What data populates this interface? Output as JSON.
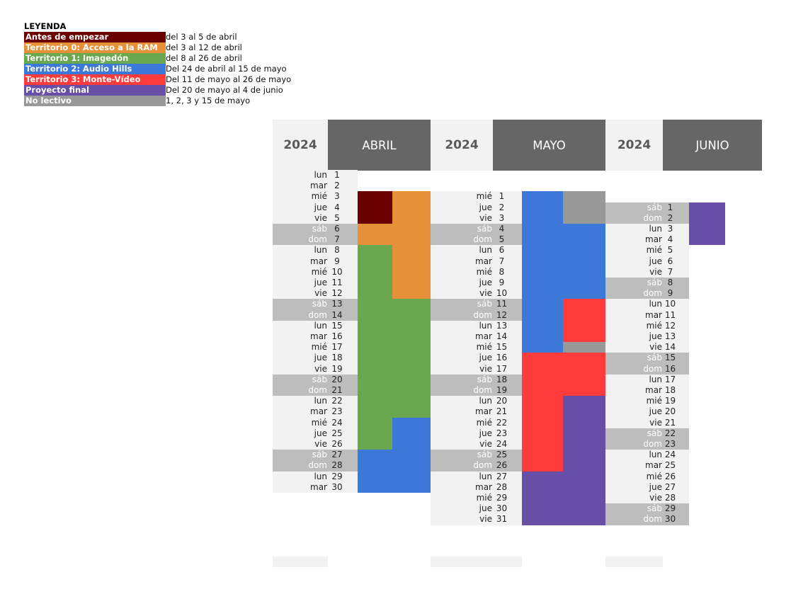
{
  "legend": {
    "title": "LEYENDA",
    "items": [
      {
        "name": "Antes de empezar",
        "desc": "del 3 al 5 de abril",
        "color": "#6b0000"
      },
      {
        "name": "Territorio 0: Acceso a la RAM",
        "desc": "del 3 al 12 de abril",
        "color": "#e69138"
      },
      {
        "name": "Territorio 1: Imagedón",
        "desc": "del 8 al 26 de abril",
        "color": "#6aa84f"
      },
      {
        "name": "Territorio 2: Audio Hills",
        "desc": "Del 24 de abril al 15 de mayo",
        "color": "#3c78d8"
      },
      {
        "name": "Territorio 3: Monte-Vídeo",
        "desc": "Del 11 de mayo al 26 de mayo",
        "color": "#ff3b3b"
      },
      {
        "name": "Proyecto final",
        "desc": "Del 20 de mayo al 4 de junio",
        "color": "#674ea7"
      },
      {
        "name": "No lectivo",
        "desc": "1, 2, 3 y 15 de mayo",
        "color": "#999999"
      }
    ]
  },
  "months": [
    {
      "year": "2024",
      "name": "ABRIL",
      "days": [
        [
          "lun",
          "1"
        ],
        [
          "mar",
          "2"
        ],
        [
          "mié",
          "3"
        ],
        [
          "jue",
          "4"
        ],
        [
          "vie",
          "5"
        ],
        [
          "sáb",
          "6"
        ],
        [
          "dom",
          "7"
        ],
        [
          "lun",
          "8"
        ],
        [
          "mar",
          "9"
        ],
        [
          "mié",
          "10"
        ],
        [
          "jue",
          "11"
        ],
        [
          "vie",
          "12"
        ],
        [
          "sáb",
          "13"
        ],
        [
          "dom",
          "14"
        ],
        [
          "lun",
          "15"
        ],
        [
          "mar",
          "16"
        ],
        [
          "mié",
          "17"
        ],
        [
          "jue",
          "18"
        ],
        [
          "vie",
          "19"
        ],
        [
          "sáb",
          "20"
        ],
        [
          "dom",
          "21"
        ],
        [
          "lun",
          "22"
        ],
        [
          "mar",
          "23"
        ],
        [
          "mié",
          "24"
        ],
        [
          "jue",
          "25"
        ],
        [
          "vie",
          "26"
        ],
        [
          "sáb",
          "27"
        ],
        [
          "dom",
          "28"
        ],
        [
          "lun",
          "29"
        ],
        [
          "mar",
          "30"
        ]
      ],
      "bars": [
        {
          "color": "#6b0000",
          "lane": 0,
          "from": 3,
          "to": 5
        },
        {
          "color": "#e69138",
          "lane": 1,
          "from": 3,
          "to": 12
        },
        {
          "color": "#e69138",
          "lane": 0,
          "from": 6,
          "to": 7
        },
        {
          "color": "#6aa84f",
          "lane": 0,
          "from": 8,
          "to": 26
        },
        {
          "color": "#6aa84f",
          "lane": 1,
          "from": 13,
          "to": 23
        },
        {
          "color": "#3c78d8",
          "lane": 1,
          "from": 24,
          "to": 30
        },
        {
          "color": "#3c78d8",
          "lane": 0,
          "from": 27,
          "to": 30
        }
      ]
    },
    {
      "year": "2024",
      "name": "MAYO",
      "days": [
        [
          "mié",
          "1"
        ],
        [
          "jue",
          "2"
        ],
        [
          "vie",
          "3"
        ],
        [
          "sáb",
          "4"
        ],
        [
          "dom",
          "5"
        ],
        [
          "lun",
          "6"
        ],
        [
          "mar",
          "7"
        ],
        [
          "mié",
          "8"
        ],
        [
          "jue",
          "9"
        ],
        [
          "vie",
          "10"
        ],
        [
          "sáb",
          "11"
        ],
        [
          "dom",
          "12"
        ],
        [
          "lun",
          "13"
        ],
        [
          "mar",
          "14"
        ],
        [
          "mié",
          "15"
        ],
        [
          "jue",
          "16"
        ],
        [
          "vie",
          "17"
        ],
        [
          "sáb",
          "18"
        ],
        [
          "dom",
          "19"
        ],
        [
          "lun",
          "20"
        ],
        [
          "mar",
          "21"
        ],
        [
          "mié",
          "22"
        ],
        [
          "jue",
          "23"
        ],
        [
          "vie",
          "24"
        ],
        [
          "sáb",
          "25"
        ],
        [
          "dom",
          "26"
        ],
        [
          "lun",
          "27"
        ],
        [
          "mar",
          "28"
        ],
        [
          "mié",
          "29"
        ],
        [
          "jue",
          "30"
        ],
        [
          "vie",
          "31"
        ]
      ],
      "bars": [
        {
          "color": "#3c78d8",
          "lane": 0,
          "from": 1,
          "to": 15
        },
        {
          "color": "#999999",
          "lane": 1,
          "from": 1,
          "to": 3
        },
        {
          "color": "#3c78d8",
          "lane": 1,
          "from": 4,
          "to": 10
        },
        {
          "color": "#ff3b3b",
          "lane": 1,
          "from": 11,
          "to": 14
        },
        {
          "color": "#999999",
          "lane": 1,
          "from": 15,
          "to": 15
        },
        {
          "color": "#ff3b3b",
          "lane": 0,
          "from": 16,
          "to": 26
        },
        {
          "color": "#ff3b3b",
          "lane": 1,
          "from": 16,
          "to": 19
        },
        {
          "color": "#674ea7",
          "lane": 1,
          "from": 20,
          "to": 31
        },
        {
          "color": "#674ea7",
          "lane": 0,
          "from": 27,
          "to": 31
        }
      ]
    },
    {
      "year": "2024",
      "name": "JUNIO",
      "days": [
        [
          "sáb",
          "1"
        ],
        [
          "dom",
          "2"
        ],
        [
          "lun",
          "3"
        ],
        [
          "mar",
          "4"
        ],
        [
          "mié",
          "5"
        ],
        [
          "jue",
          "6"
        ],
        [
          "vie",
          "7"
        ],
        [
          "sáb",
          "8"
        ],
        [
          "dom",
          "9"
        ],
        [
          "lun",
          "10"
        ],
        [
          "mar",
          "11"
        ],
        [
          "mié",
          "12"
        ],
        [
          "jue",
          "13"
        ],
        [
          "vie",
          "14"
        ],
        [
          "sáb",
          "15"
        ],
        [
          "dom",
          "16"
        ],
        [
          "lun",
          "17"
        ],
        [
          "mar",
          "18"
        ],
        [
          "mié",
          "19"
        ],
        [
          "jue",
          "20"
        ],
        [
          "vie",
          "21"
        ],
        [
          "sáb",
          "22"
        ],
        [
          "dom",
          "23"
        ],
        [
          "lun",
          "24"
        ],
        [
          "mar",
          "25"
        ],
        [
          "mié",
          "26"
        ],
        [
          "jue",
          "27"
        ],
        [
          "vie",
          "28"
        ],
        [
          "sáb",
          "29"
        ],
        [
          "dom",
          "30"
        ]
      ],
      "bars": [
        {
          "color": "#674ea7",
          "lane": 0,
          "from": 1,
          "to": 4
        }
      ]
    }
  ]
}
